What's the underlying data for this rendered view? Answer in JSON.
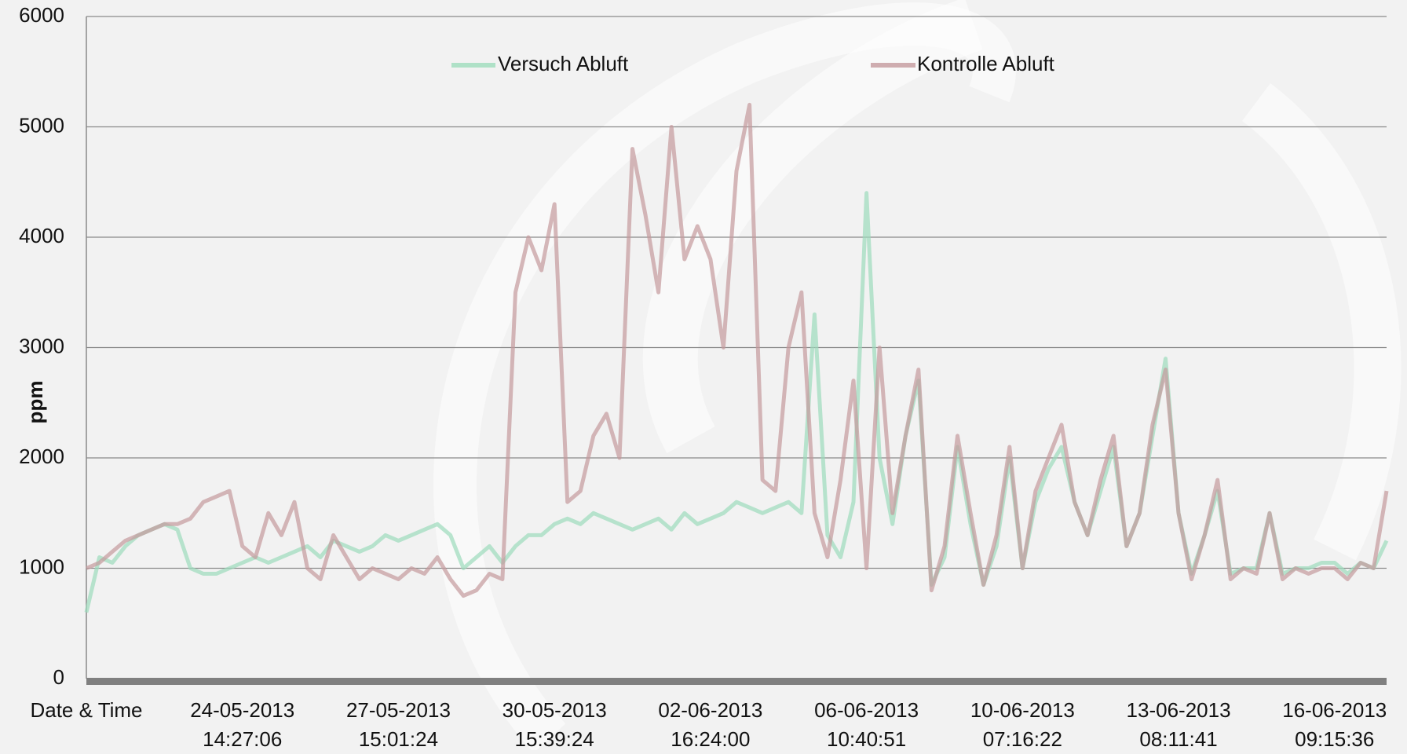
{
  "chart_data": {
    "type": "line",
    "ylabel": "ppm",
    "categories": [
      "Date & Time",
      null,
      null,
      null,
      null,
      null,
      null,
      null,
      null,
      null,
      null,
      null,
      "24-05-2013\n14:27:06",
      null,
      null,
      null,
      null,
      null,
      null,
      null,
      null,
      null,
      null,
      null,
      "27-05-2013\n15:01:24",
      null,
      null,
      null,
      null,
      null,
      null,
      null,
      null,
      null,
      null,
      null,
      "30-05-2013\n15:39:24",
      null,
      null,
      null,
      null,
      null,
      null,
      null,
      null,
      null,
      null,
      null,
      "02-06-2013\n16:24:00",
      null,
      null,
      null,
      null,
      null,
      null,
      null,
      null,
      null,
      null,
      null,
      "06-06-2013\n10:40:51",
      null,
      null,
      null,
      null,
      null,
      null,
      null,
      null,
      null,
      null,
      null,
      "10-06-2013\n07:16:22",
      null,
      null,
      null,
      null,
      null,
      null,
      null,
      null,
      null,
      null,
      null,
      "13-06-2013\n08:11:41",
      null,
      null,
      null,
      null,
      null,
      null,
      null,
      null,
      null,
      null,
      null,
      "16-06-2013\n09:15:36",
      null,
      null,
      null,
      null
    ],
    "series": [
      {
        "name": "Versuch Abluft",
        "color": "#9ddcbc",
        "values": [
          600,
          1100,
          1050,
          1200,
          1300,
          1350,
          1400,
          1350,
          1000,
          950,
          950,
          1000,
          1050,
          1100,
          1050,
          1100,
          1150,
          1200,
          1100,
          1250,
          1200,
          1150,
          1200,
          1300,
          1250,
          1300,
          1350,
          1400,
          1300,
          1000,
          1100,
          1200,
          1050,
          1200,
          1300,
          1300,
          1400,
          1450,
          1400,
          1500,
          1450,
          1400,
          1350,
          1400,
          1450,
          1350,
          1500,
          1400,
          1450,
          1500,
          1600,
          1550,
          1500,
          1550,
          1600,
          1500,
          3300,
          1300,
          1100,
          1600,
          4400,
          2000,
          1400,
          2200,
          2700,
          850,
          1100,
          2100,
          1400,
          850,
          1200,
          2000,
          1000,
          1600,
          1900,
          2100,
          1600,
          1300,
          1700,
          2100,
          1200,
          1500,
          2200,
          2900,
          1500,
          950,
          1300,
          1700,
          950,
          1000,
          1000,
          1500,
          950,
          1000,
          1000,
          1050,
          1050,
          950,
          1050,
          1000,
          1250
        ]
      },
      {
        "name": "Kontrolle Abluft",
        "color": "#c49a9d",
        "values": [
          1000,
          1050,
          1150,
          1250,
          1300,
          1350,
          1400,
          1400,
          1450,
          1600,
          1650,
          1700,
          1200,
          1100,
          1500,
          1300,
          1600,
          1000,
          900,
          1300,
          1100,
          900,
          1000,
          950,
          900,
          1000,
          950,
          1100,
          900,
          750,
          800,
          950,
          900,
          3500,
          4000,
          3700,
          4300,
          1600,
          1700,
          2200,
          2400,
          2000,
          4800,
          4200,
          3500,
          5000,
          3800,
          4100,
          3800,
          3000,
          4600,
          5200,
          1800,
          1700,
          3000,
          3500,
          1500,
          1100,
          1800,
          2700,
          1000,
          3000,
          1500,
          2200,
          2800,
          800,
          1200,
          2200,
          1500,
          850,
          1300,
          2100,
          1000,
          1700,
          2000,
          2300,
          1600,
          1300,
          1800,
          2200,
          1200,
          1500,
          2300,
          2800,
          1500,
          900,
          1300,
          1800,
          900,
          1000,
          950,
          1500,
          900,
          1000,
          950,
          1000,
          1000,
          900,
          1050,
          1000,
          1700
        ]
      }
    ],
    "ylim": [
      0,
      6000
    ],
    "yticks": [
      0,
      1000,
      2000,
      3000,
      4000,
      5000,
      6000
    ],
    "grid": true
  }
}
